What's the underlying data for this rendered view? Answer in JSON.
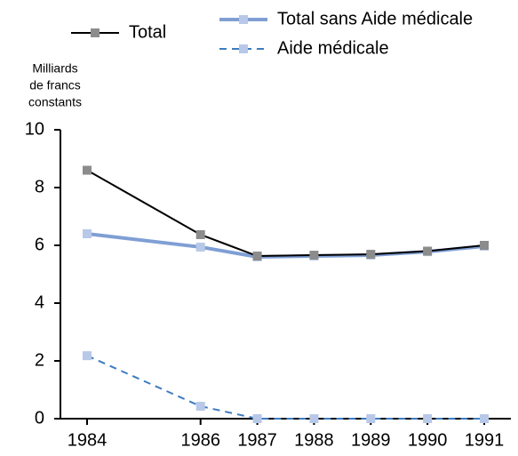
{
  "chart_data": {
    "type": "line",
    "ylabel": [
      "Milliards",
      "de francs",
      "constants"
    ],
    "x": [
      1984,
      1986,
      1987,
      1988,
      1989,
      1990,
      1991
    ],
    "xlim": [
      1983.5,
      1991.5
    ],
    "xticks": [
      1984,
      1986,
      1987,
      1988,
      1989,
      1990,
      1991
    ],
    "ylim": [
      0,
      10
    ],
    "yticks": [
      0,
      2,
      4,
      6,
      8,
      10
    ],
    "series": [
      {
        "name": "Total",
        "color": "#000000",
        "marker_color": "#8c8c8c",
        "width": 2,
        "dash": false,
        "values": [
          8.6,
          6.37,
          5.63,
          5.66,
          5.69,
          5.8,
          6.0
        ]
      },
      {
        "name": "Total sans Aide médicale",
        "color": "#7f9fd4",
        "marker_color": "#b8c8e8",
        "width": 4,
        "dash": false,
        "values": [
          6.4,
          5.94,
          5.6,
          5.63,
          5.66,
          5.78,
          5.97
        ]
      },
      {
        "name": "Aide médicale",
        "color": "#3d7cc0",
        "marker_color": "#b8c8e8",
        "width": 2,
        "dash": true,
        "values": [
          2.18,
          0.43,
          0,
          0,
          0,
          0,
          0
        ]
      }
    ]
  }
}
